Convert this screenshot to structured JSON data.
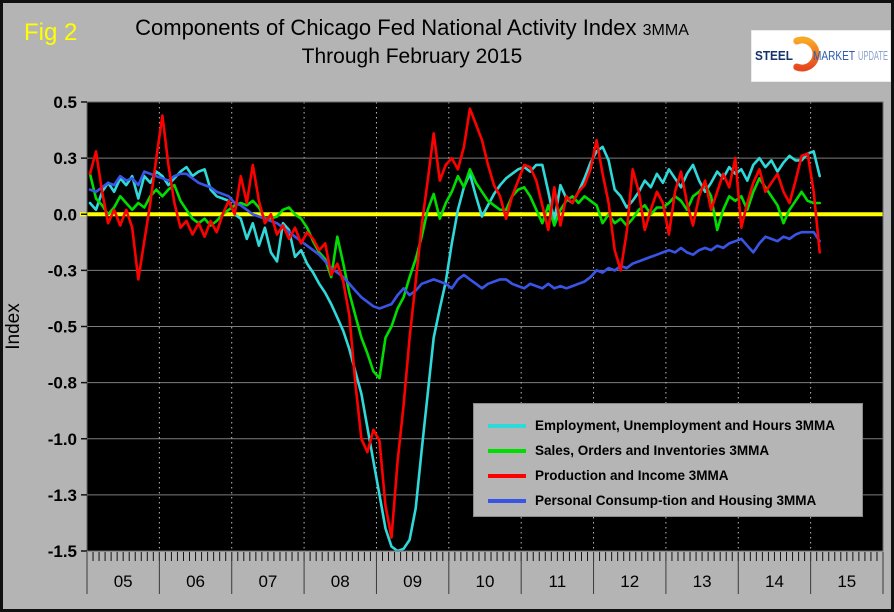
{
  "figure_label": "Fig 2",
  "title": {
    "line1_main": "Components of Chicago Fed National Activity Index",
    "line1_suffix": "3MMA",
    "line2": "Through February 2015"
  },
  "logo": {
    "word1": "STEEL",
    "word2": "MARKET",
    "word3": "UPDATE"
  },
  "y_axis": {
    "title": "Index",
    "ticks": [
      {
        "value": 0.5,
        "label": "0.5"
      },
      {
        "value": 0.25,
        "label": "0.3"
      },
      {
        "value": 0.0,
        "label": "0.0"
      },
      {
        "value": -0.25,
        "label": "-0.3"
      },
      {
        "value": -0.5,
        "label": "-0.5"
      },
      {
        "value": -0.75,
        "label": "-0.8"
      },
      {
        "value": -1.0,
        "label": "-1.0"
      },
      {
        "value": -1.25,
        "label": "-1.3"
      },
      {
        "value": -1.5,
        "label": "-1.5"
      }
    ]
  },
  "x_axis": {
    "year_labels": [
      "05",
      "06",
      "07",
      "08",
      "09",
      "10",
      "11",
      "12",
      "13",
      "14",
      "15"
    ]
  },
  "chart_data": {
    "type": "line",
    "title": "Components of Chicago Fed National Activity Index 3MMA Through February 2015",
    "xlabel": "",
    "ylabel": "Index",
    "ylim": [
      -1.5,
      0.5
    ],
    "gridline_step": 0.25,
    "x_start_month": "2005-01",
    "x_end_month": "2015-02",
    "x_axis_span_months": 132,
    "grid": {
      "horizontal": "solid",
      "vertical": "dashed"
    },
    "plot_background": "#000000",
    "zero_line_color": "#ffff00",
    "legend_position": "lower-right",
    "series": [
      {
        "name": "Employment, Unemployment and Hours 3MMA",
        "color": "#2fd9d9",
        "values": [
          0.05,
          0.02,
          0.1,
          0.14,
          0.1,
          0.16,
          0.13,
          0.17,
          0.07,
          0.17,
          0.14,
          0.19,
          0.17,
          0.13,
          0.16,
          0.19,
          0.21,
          0.17,
          0.19,
          0.2,
          0.11,
          0.08,
          0.07,
          0.06,
          0.0,
          -0.02,
          -0.11,
          -0.04,
          -0.14,
          -0.06,
          -0.17,
          -0.21,
          -0.04,
          -0.07,
          -0.19,
          -0.16,
          -0.22,
          -0.26,
          -0.31,
          -0.35,
          -0.4,
          -0.46,
          -0.52,
          -0.6,
          -0.7,
          -0.8,
          -0.95,
          -1.1,
          -1.25,
          -1.4,
          -1.48,
          -1.5,
          -1.49,
          -1.45,
          -1.31,
          -1.05,
          -0.8,
          -0.55,
          -0.42,
          -0.3,
          -0.13,
          0.02,
          0.12,
          0.18,
          0.08,
          -0.01,
          0.04,
          0.09,
          0.13,
          0.16,
          0.18,
          0.2,
          0.21,
          0.19,
          0.22,
          0.22,
          0.1,
          -0.03,
          0.13,
          0.07,
          0.05,
          0.1,
          0.16,
          0.23,
          0.28,
          0.3,
          0.24,
          0.11,
          0.08,
          0.03,
          0.06,
          0.1,
          0.15,
          0.12,
          0.18,
          0.14,
          0.2,
          0.16,
          0.12,
          0.18,
          0.22,
          0.15,
          0.1,
          0.14,
          0.19,
          0.16,
          0.21,
          0.18,
          0.2,
          0.15,
          0.22,
          0.25,
          0.21,
          0.24,
          0.19,
          0.23,
          0.26,
          0.24,
          0.24,
          0.27,
          0.28,
          0.17
        ]
      },
      {
        "name": "Sales, Orders and Inventories 3MMA",
        "color": "#00dd00",
        "values": [
          0.18,
          0.07,
          0.04,
          0.0,
          0.03,
          0.08,
          0.05,
          0.02,
          0.05,
          0.03,
          0.08,
          0.11,
          0.08,
          0.11,
          0.13,
          0.06,
          0.02,
          -0.02,
          -0.04,
          -0.02,
          -0.05,
          -0.03,
          0.0,
          0.02,
          0.04,
          0.05,
          0.04,
          0.06,
          0.03,
          -0.02,
          -0.02,
          -0.01,
          0.02,
          0.03,
          0.0,
          -0.02,
          -0.06,
          -0.12,
          -0.17,
          -0.2,
          -0.28,
          -0.1,
          -0.22,
          -0.35,
          -0.45,
          -0.55,
          -0.62,
          -0.7,
          -0.73,
          -0.55,
          -0.5,
          -0.42,
          -0.37,
          -0.28,
          -0.2,
          -0.1,
          0.02,
          0.09,
          -0.02,
          0.05,
          0.1,
          0.17,
          0.12,
          0.2,
          0.14,
          0.1,
          0.06,
          0.04,
          0.02,
          0.02,
          0.08,
          0.11,
          0.12,
          0.08,
          0.02,
          -0.04,
          0.04,
          -0.05,
          0.02,
          0.06,
          0.08,
          0.05,
          0.08,
          0.06,
          0.04,
          -0.04,
          0.0,
          -0.04,
          -0.02,
          -0.05,
          -0.02,
          0.02,
          0.04,
          0.0,
          0.03,
          0.03,
          0.05,
          0.08,
          0.06,
          0.02,
          0.08,
          0.1,
          0.13,
          0.08,
          -0.07,
          0.02,
          0.08,
          0.06,
          0.08,
          0.02,
          0.1,
          0.16,
          0.12,
          0.08,
          0.04,
          -0.04,
          0.02,
          0.06,
          0.1,
          0.06,
          0.05,
          0.05
        ]
      },
      {
        "name": "Production and Income 3MMA",
        "color": "#ff0000",
        "values": [
          0.18,
          0.28,
          0.1,
          -0.04,
          0.02,
          -0.05,
          0.02,
          -0.06,
          -0.29,
          -0.12,
          0.05,
          0.25,
          0.44,
          0.22,
          0.05,
          -0.06,
          -0.03,
          -0.09,
          -0.04,
          -0.1,
          -0.03,
          -0.08,
          0.0,
          0.06,
          0.0,
          0.17,
          0.05,
          0.22,
          0.06,
          -0.04,
          0.0,
          -0.09,
          -0.05,
          -0.11,
          -0.06,
          -0.13,
          -0.08,
          -0.11,
          -0.16,
          -0.13,
          -0.27,
          -0.22,
          -0.3,
          -0.45,
          -0.75,
          -1.0,
          -1.06,
          -0.96,
          -1.01,
          -1.3,
          -1.44,
          -1.1,
          -0.85,
          -0.55,
          -0.3,
          -0.05,
          0.15,
          0.36,
          0.15,
          0.22,
          0.25,
          0.2,
          0.3,
          0.47,
          0.4,
          0.33,
          0.22,
          0.13,
          0.08,
          -0.02,
          0.08,
          0.15,
          0.22,
          0.21,
          0.15,
          0.04,
          -0.07,
          0.12,
          -0.05,
          0.08,
          0.05,
          0.1,
          0.13,
          0.2,
          0.33,
          0.18,
          0.05,
          -0.16,
          -0.25,
          -0.08,
          0.2,
          0.1,
          -0.07,
          0.02,
          0.1,
          0.05,
          -0.09,
          0.1,
          0.19,
          0.05,
          -0.05,
          0.08,
          0.15,
          0.02,
          0.1,
          0.18,
          0.12,
          0.25,
          -0.06,
          0.05,
          0.14,
          0.2,
          0.1,
          0.14,
          0.18,
          0.1,
          0.05,
          0.15,
          0.26,
          0.27,
          0.1,
          -0.17
        ]
      },
      {
        "name": "Personal Consump-tion and Housing 3MMA",
        "color": "#3a55e6",
        "values": [
          0.11,
          0.1,
          0.12,
          0.14,
          0.13,
          0.17,
          0.15,
          0.16,
          0.13,
          0.19,
          0.18,
          0.17,
          0.16,
          0.15,
          0.17,
          0.18,
          0.18,
          0.16,
          0.14,
          0.13,
          0.12,
          0.1,
          0.09,
          0.08,
          0.05,
          0.04,
          0.02,
          0.0,
          -0.01,
          -0.02,
          -0.03,
          -0.04,
          -0.06,
          -0.08,
          -0.1,
          -0.12,
          -0.14,
          -0.16,
          -0.18,
          -0.21,
          -0.24,
          -0.26,
          -0.28,
          -0.31,
          -0.34,
          -0.37,
          -0.39,
          -0.41,
          -0.42,
          -0.41,
          -0.4,
          -0.36,
          -0.33,
          -0.36,
          -0.34,
          -0.31,
          -0.3,
          -0.29,
          -0.3,
          -0.31,
          -0.33,
          -0.29,
          -0.27,
          -0.29,
          -0.31,
          -0.33,
          -0.31,
          -0.3,
          -0.29,
          -0.29,
          -0.31,
          -0.32,
          -0.33,
          -0.31,
          -0.32,
          -0.33,
          -0.31,
          -0.33,
          -0.32,
          -0.33,
          -0.32,
          -0.31,
          -0.3,
          -0.28,
          -0.25,
          -0.26,
          -0.24,
          -0.25,
          -0.23,
          -0.24,
          -0.22,
          -0.21,
          -0.2,
          -0.19,
          -0.18,
          -0.17,
          -0.16,
          -0.17,
          -0.15,
          -0.17,
          -0.18,
          -0.16,
          -0.15,
          -0.16,
          -0.14,
          -0.15,
          -0.13,
          -0.12,
          -0.11,
          -0.14,
          -0.17,
          -0.13,
          -0.1,
          -0.11,
          -0.12,
          -0.1,
          -0.11,
          -0.09,
          -0.08,
          -0.08,
          -0.08,
          -0.12
        ]
      }
    ]
  }
}
